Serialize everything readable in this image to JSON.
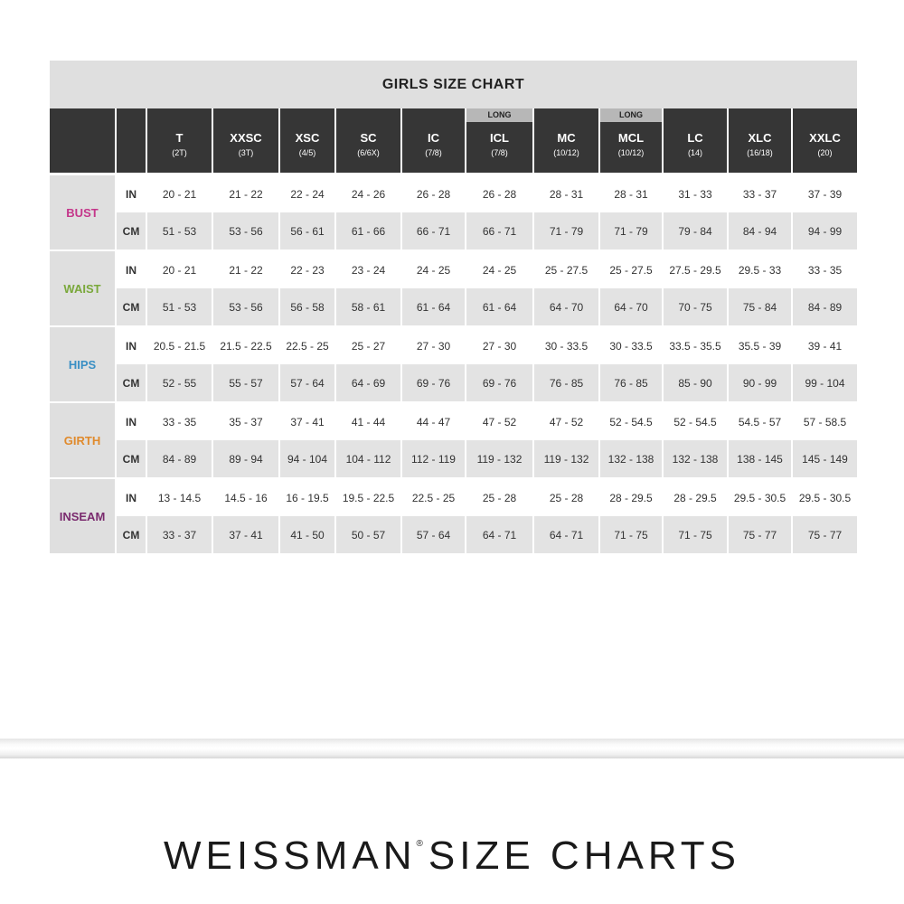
{
  "title": "GIRLS SIZE CHART",
  "long_label": "LONG",
  "sizes": [
    {
      "code": "T",
      "sub": "(2T)",
      "long": false
    },
    {
      "code": "XXSC",
      "sub": "(3T)",
      "long": false
    },
    {
      "code": "XSC",
      "sub": "(4/5)",
      "long": false
    },
    {
      "code": "SC",
      "sub": "(6/6X)",
      "long": false
    },
    {
      "code": "IC",
      "sub": "(7/8)",
      "long": false
    },
    {
      "code": "ICL",
      "sub": "(7/8)",
      "long": true
    },
    {
      "code": "MC",
      "sub": "(10/12)",
      "long": false
    },
    {
      "code": "MCL",
      "sub": "(10/12)",
      "long": true
    },
    {
      "code": "LC",
      "sub": "(14)",
      "long": false
    },
    {
      "code": "XLC",
      "sub": "(16/18)",
      "long": false
    },
    {
      "code": "XXLC",
      "sub": "(20)",
      "long": false
    }
  ],
  "measurements": [
    {
      "name": "BUST",
      "color": "#c4368a",
      "in": [
        "20 - 21",
        "21 - 22",
        "22 - 24",
        "24 - 26",
        "26 - 28",
        "26 - 28",
        "28 - 31",
        "28 - 31",
        "31 - 33",
        "33 - 37",
        "37 - 39"
      ],
      "cm": [
        "51 - 53",
        "53 - 56",
        "56 - 61",
        "61 - 66",
        "66 - 71",
        "66 - 71",
        "71 - 79",
        "71 - 79",
        "79 - 84",
        "84 - 94",
        "94 - 99"
      ]
    },
    {
      "name": "WAIST",
      "color": "#7aa83b",
      "in": [
        "20 - 21",
        "21 - 22",
        "22 - 23",
        "23 - 24",
        "24 - 25",
        "24 - 25",
        "25 - 27.5",
        "25 - 27.5",
        "27.5 - 29.5",
        "29.5 - 33",
        "33 - 35"
      ],
      "cm": [
        "51 - 53",
        "53 - 56",
        "56 - 58",
        "58 - 61",
        "61 - 64",
        "61 - 64",
        "64 - 70",
        "64 - 70",
        "70 - 75",
        "75 - 84",
        "84 - 89"
      ]
    },
    {
      "name": "HIPS",
      "color": "#3a8fc4",
      "in": [
        "20.5 - 21.5",
        "21.5 - 22.5",
        "22.5 - 25",
        "25 - 27",
        "27 - 30",
        "27 - 30",
        "30 - 33.5",
        "30 - 33.5",
        "33.5 - 35.5",
        "35.5 - 39",
        "39 - 41"
      ],
      "cm": [
        "52 - 55",
        "55 - 57",
        "57 - 64",
        "64 - 69",
        "69 - 76",
        "69 - 76",
        "76 - 85",
        "76 - 85",
        "85 - 90",
        "90 - 99",
        "99 - 104"
      ]
    },
    {
      "name": "GIRTH",
      "color": "#e08a2c",
      "in": [
        "33 - 35",
        "35 - 37",
        "37 - 41",
        "41 - 44",
        "44 - 47",
        "47 - 52",
        "47 - 52",
        "52 - 54.5",
        "52 - 54.5",
        "54.5 - 57",
        "57 - 58.5"
      ],
      "cm": [
        "84 - 89",
        "89 - 94",
        "94 - 104",
        "104 - 112",
        "112 - 119",
        "119 - 132",
        "119 - 132",
        "132 - 138",
        "132 - 138",
        "138 - 145",
        "145 - 149"
      ]
    },
    {
      "name": "INSEAM",
      "color": "#7a2a6e",
      "in": [
        "13 - 14.5",
        "14.5 - 16",
        "16 - 19.5",
        "19.5 - 22.5",
        "22.5 - 25",
        "25 - 28",
        "25 - 28",
        "28 - 29.5",
        "28 - 29.5",
        "29.5 - 30.5",
        "29.5 - 30.5"
      ],
      "cm": [
        "33 - 37",
        "37 - 41",
        "41 - 50",
        "50 - 57",
        "57 - 64",
        "64 - 71",
        "64 - 71",
        "71 - 75",
        "71 - 75",
        "75 - 77",
        "75 - 77"
      ]
    }
  ],
  "units": {
    "in": "IN",
    "cm": "CM"
  },
  "brand": {
    "name": "WEISSMAN",
    "mark": "®",
    "suffix": "SIZE CHARTS"
  }
}
